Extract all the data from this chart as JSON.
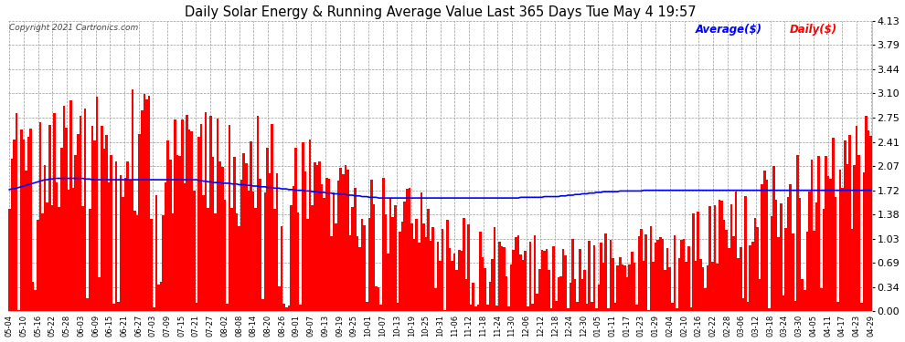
{
  "title": "Daily Solar Energy & Running Average Value Last 365 Days Tue May 4 19:57",
  "copyright": "Copyright 2021 Cartronics.com",
  "legend_avg": "Average($)",
  "legend_daily": "Daily($)",
  "yticks": [
    0.0,
    0.34,
    0.69,
    1.03,
    1.38,
    1.72,
    2.07,
    2.41,
    2.75,
    3.1,
    3.44,
    3.79,
    4.13
  ],
  "ymax": 4.13,
  "bar_color": "#ff0000",
  "avg_color": "#0000ff",
  "background_color": "#ffffff",
  "grid_color": "#aaaaaa",
  "title_color": "#000000",
  "xtick_labels": [
    "05-04",
    "05-10",
    "05-16",
    "05-22",
    "05-28",
    "06-03",
    "06-09",
    "06-15",
    "06-21",
    "06-27",
    "07-03",
    "07-09",
    "07-15",
    "07-21",
    "07-27",
    "08-02",
    "08-08",
    "08-14",
    "08-20",
    "08-26",
    "09-01",
    "09-07",
    "09-13",
    "09-19",
    "09-25",
    "10-01",
    "10-07",
    "10-13",
    "10-19",
    "10-25",
    "10-31",
    "11-06",
    "11-12",
    "11-18",
    "11-24",
    "11-30",
    "12-06",
    "12-12",
    "12-18",
    "12-24",
    "12-30",
    "01-05",
    "01-11",
    "01-17",
    "01-23",
    "01-29",
    "02-04",
    "02-10",
    "02-16",
    "02-22",
    "02-28",
    "03-06",
    "03-12",
    "03-18",
    "03-24",
    "03-30",
    "04-05",
    "04-11",
    "04-17",
    "04-23",
    "04-29"
  ],
  "num_bars": 365,
  "avg_line": [
    1.73,
    1.74,
    1.74,
    1.75,
    1.76,
    1.77,
    1.78,
    1.79,
    1.8,
    1.81,
    1.82,
    1.83,
    1.84,
    1.85,
    1.86,
    1.87,
    1.87,
    1.88,
    1.88,
    1.89,
    1.89,
    1.89,
    1.89,
    1.89,
    1.89,
    1.89,
    1.89,
    1.89,
    1.89,
    1.89,
    1.89,
    1.89,
    1.88,
    1.88,
    1.88,
    1.87,
    1.87,
    1.87,
    1.87,
    1.87,
    1.87,
    1.87,
    1.87,
    1.87,
    1.87,
    1.87,
    1.87,
    1.87,
    1.87,
    1.87,
    1.87,
    1.87,
    1.87,
    1.87,
    1.87,
    1.87,
    1.87,
    1.87,
    1.87,
    1.87,
    1.87,
    1.87,
    1.87,
    1.87,
    1.87,
    1.87,
    1.87,
    1.87,
    1.87,
    1.87,
    1.87,
    1.87,
    1.87,
    1.87,
    1.87,
    1.87,
    1.87,
    1.87,
    1.87,
    1.87,
    1.86,
    1.86,
    1.85,
    1.85,
    1.84,
    1.84,
    1.83,
    1.83,
    1.83,
    1.83,
    1.82,
    1.82,
    1.82,
    1.82,
    1.81,
    1.81,
    1.81,
    1.8,
    1.8,
    1.8,
    1.79,
    1.79,
    1.79,
    1.78,
    1.78,
    1.78,
    1.77,
    1.77,
    1.77,
    1.76,
    1.76,
    1.76,
    1.75,
    1.75,
    1.75,
    1.74,
    1.74,
    1.74,
    1.73,
    1.73,
    1.73,
    1.72,
    1.72,
    1.72,
    1.72,
    1.71,
    1.71,
    1.71,
    1.7,
    1.7,
    1.7,
    1.69,
    1.69,
    1.69,
    1.68,
    1.68,
    1.68,
    1.67,
    1.67,
    1.67,
    1.66,
    1.66,
    1.66,
    1.65,
    1.65,
    1.65,
    1.64,
    1.64,
    1.64,
    1.63,
    1.63,
    1.63,
    1.62,
    1.62,
    1.62,
    1.62,
    1.61,
    1.61,
    1.61,
    1.61,
    1.61,
    1.61,
    1.61,
    1.61,
    1.61,
    1.61,
    1.61,
    1.61,
    1.61,
    1.61,
    1.61,
    1.61,
    1.61,
    1.61,
    1.61,
    1.61,
    1.61,
    1.61,
    1.61,
    1.61,
    1.61,
    1.61,
    1.61,
    1.61,
    1.61,
    1.61,
    1.61,
    1.61,
    1.61,
    1.61,
    1.61,
    1.61,
    1.61,
    1.61,
    1.61,
    1.61,
    1.61,
    1.61,
    1.61,
    1.61,
    1.61,
    1.61,
    1.61,
    1.61,
    1.61,
    1.61,
    1.61,
    1.61,
    1.61,
    1.61,
    1.61,
    1.61,
    1.61,
    1.61,
    1.61,
    1.61,
    1.62,
    1.62,
    1.62,
    1.62,
    1.62,
    1.62,
    1.62,
    1.62,
    1.62,
    1.62,
    1.63,
    1.63,
    1.63,
    1.63,
    1.63,
    1.63,
    1.63,
    1.64,
    1.64,
    1.64,
    1.65,
    1.65,
    1.65,
    1.66,
    1.66,
    1.66,
    1.67,
    1.67,
    1.67,
    1.68,
    1.68,
    1.68,
    1.69,
    1.69,
    1.69,
    1.7,
    1.7,
    1.7,
    1.7,
    1.7,
    1.7,
    1.7,
    1.71,
    1.71,
    1.71,
    1.71,
    1.71,
    1.71,
    1.71,
    1.71,
    1.71,
    1.71,
    1.72,
    1.72,
    1.72,
    1.72,
    1.72,
    1.72,
    1.72,
    1.72,
    1.72,
    1.72,
    1.72,
    1.72,
    1.72,
    1.72,
    1.72,
    1.72,
    1.72,
    1.72,
    1.72,
    1.72,
    1.72,
    1.72,
    1.72,
    1.72,
    1.72,
    1.72,
    1.72,
    1.72,
    1.72,
    1.72,
    1.72,
    1.72,
    1.72,
    1.72,
    1.72,
    1.72,
    1.72,
    1.72,
    1.72,
    1.72,
    1.72,
    1.72,
    1.72,
    1.72,
    1.72,
    1.72,
    1.72,
    1.72,
    1.72,
    1.72,
    1.72,
    1.72,
    1.72,
    1.72,
    1.72,
    1.72,
    1.72,
    1.72,
    1.72,
    1.72,
    1.72,
    1.72,
    1.72,
    1.72,
    1.72,
    1.72,
    1.72,
    1.72,
    1.72,
    1.72,
    1.72,
    1.72,
    1.72,
    1.72,
    1.72,
    1.72,
    1.72,
    1.72,
    1.72,
    1.72,
    1.72,
    1.72,
    1.72,
    1.72,
    1.72,
    1.72,
    1.72,
    1.72,
    1.72,
    1.72,
    1.72,
    1.72,
    1.72,
    1.72,
    1.72,
    1.72,
    1.72
  ]
}
